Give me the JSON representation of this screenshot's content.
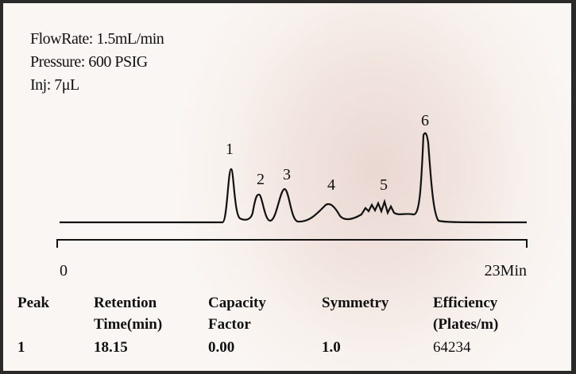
{
  "conditions": [
    "FlowRate: 1.5mL/min",
    "Pressure: 600 PSIG",
    "Inj: 7μL"
  ],
  "peaks": [
    "1",
    "2",
    "3",
    "4",
    "5",
    "6"
  ],
  "axis": {
    "start": "0",
    "end": "23Min"
  },
  "table": {
    "header": [
      [
        "Peak"
      ],
      [
        "Retention",
        "Time(min)"
      ],
      [
        "Capacity",
        "Factor"
      ],
      [
        "Symmetry"
      ],
      [
        "Efficiency",
        "(Plates/m)"
      ]
    ],
    "rows": [
      [
        "1",
        "18.15",
        "0.00",
        "1.0",
        "64234"
      ]
    ]
  }
}
